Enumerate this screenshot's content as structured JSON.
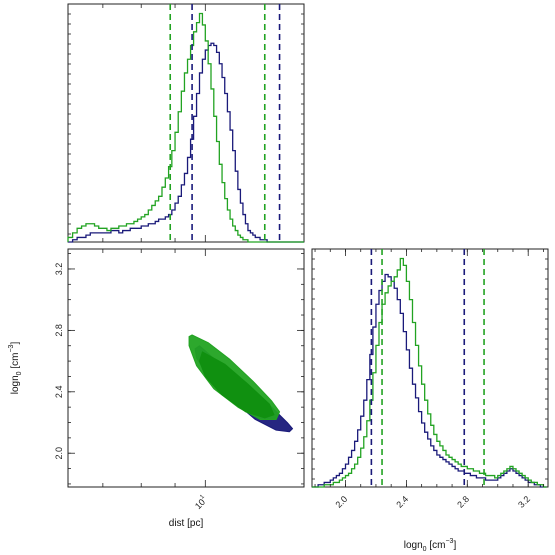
{
  "chart_data": [
    {
      "type": "histogram",
      "panel": "dist marginal",
      "x_scale": "log",
      "xlim": [
        6.2,
        14.1
      ],
      "bins_x": [
        6.2,
        6.3,
        6.4,
        6.5,
        6.6,
        6.7,
        6.8,
        6.9,
        7.0,
        7.1,
        7.2,
        7.3,
        7.4,
        7.5,
        7.6,
        7.7,
        7.8,
        7.9,
        8.0,
        8.1,
        8.2,
        8.3,
        8.4,
        8.5,
        8.6,
        8.7,
        8.8,
        8.9,
        9.0,
        9.1,
        9.2,
        9.3,
        9.4,
        9.5,
        9.6,
        9.7,
        9.8,
        9.9,
        10.0,
        10.1,
        10.2,
        10.3,
        10.4,
        10.5,
        10.6,
        10.7,
        10.8,
        10.9,
        11.0,
        11.1,
        11.2,
        11.3,
        11.4,
        11.5,
        11.6,
        11.7,
        11.8,
        11.9,
        12.0,
        12.1,
        12.2,
        12.3,
        12.4,
        12.5,
        12.6,
        12.7,
        12.8,
        12.9,
        13.0,
        13.1,
        13.2,
        13.3,
        13.4,
        13.5,
        13.6,
        13.7,
        13.8,
        13.9,
        14.0,
        14.1
      ],
      "series": [
        {
          "color": "#1a1a7a",
          "counts": [
            0.0,
            0.01,
            0.02,
            0.02,
            0.03,
            0.04,
            0.04,
            0.04,
            0.04,
            0.04,
            0.05,
            0.05,
            0.04,
            0.05,
            0.05,
            0.06,
            0.06,
            0.06,
            0.07,
            0.07,
            0.08,
            0.08,
            0.09,
            0.1,
            0.1,
            0.11,
            0.12,
            0.14,
            0.17,
            0.2,
            0.25,
            0.3,
            0.37,
            0.45,
            0.55,
            0.65,
            0.74,
            0.8,
            0.84,
            0.86,
            0.87,
            0.86,
            0.83,
            0.78,
            0.72,
            0.65,
            0.57,
            0.49,
            0.4,
            0.31,
            0.23,
            0.17,
            0.12,
            0.08,
            0.05,
            0.04,
            0.03,
            0.02,
            0.02,
            0.01,
            0.01,
            0.01,
            0.0,
            0.0,
            0.0,
            0.0,
            0.0,
            0.0,
            0.0,
            0.0,
            0.0,
            0.0,
            0.0,
            0.0,
            0.0,
            0.0,
            0.0,
            0.0,
            0.0
          ]
        },
        {
          "color": "#22a322",
          "counts": [
            0.02,
            0.04,
            0.06,
            0.07,
            0.08,
            0.08,
            0.07,
            0.06,
            0.06,
            0.05,
            0.06,
            0.06,
            0.07,
            0.07,
            0.08,
            0.08,
            0.09,
            0.1,
            0.11,
            0.12,
            0.14,
            0.16,
            0.18,
            0.2,
            0.24,
            0.28,
            0.33,
            0.4,
            0.48,
            0.57,
            0.66,
            0.74,
            0.8,
            0.86,
            0.92,
            0.96,
            1.0,
            0.95,
            0.88,
            0.78,
            0.67,
            0.55,
            0.44,
            0.34,
            0.26,
            0.19,
            0.14,
            0.1,
            0.07,
            0.05,
            0.03,
            0.02,
            0.01,
            0.01,
            0.0,
            0.0,
            0.0,
            0.0,
            0.0,
            0.0,
            0.0,
            0.0,
            0.0,
            0.0,
            0.0,
            0.0,
            0.0,
            0.0,
            0.0,
            0.0,
            0.0,
            0.0,
            0.0,
            0.0,
            0.0,
            0.0,
            0.0,
            0.0,
            0.0
          ]
        }
      ],
      "vlines": [
        {
          "x": 8.85,
          "color": "#22a322"
        },
        {
          "x": 9.55,
          "color": "#1a1a7a"
        },
        {
          "x": 12.3,
          "color": "#22a322"
        },
        {
          "x": 12.95,
          "color": "#1a1a7a"
        }
      ]
    },
    {
      "type": "contour",
      "panel": "joint dist vs logn0",
      "x_scale": "log",
      "xlim": [
        6.2,
        14.1
      ],
      "ylim": [
        1.78,
        3.33
      ],
      "xticks": [
        {
          "value": 10,
          "label": "10",
          "exp": "1"
        }
      ],
      "yticks": [
        {
          "value": 2.0,
          "label": "2.0"
        },
        {
          "value": 2.4,
          "label": "2.4"
        },
        {
          "value": 2.8,
          "label": "2.8"
        },
        {
          "value": 3.2,
          "label": "3.2"
        }
      ],
      "xlabel": "dist [pc]",
      "ylabel": "logn",
      "ylabel_sub": "0",
      "ylabel_unit": "[cm",
      "ylabel_unit_exp": "−3",
      "ylabel_unit_close": "]",
      "regions": [
        {
          "color": "#1a1a7a",
          "level": "outer",
          "path_data": [
            [
              9.8,
              2.7
            ],
            [
              10.6,
              2.57
            ],
            [
              11.6,
              2.43
            ],
            [
              12.6,
              2.3
            ],
            [
              13.3,
              2.2
            ],
            [
              13.55,
              2.16
            ],
            [
              13.4,
              2.14
            ],
            [
              12.8,
              2.15
            ],
            [
              11.9,
              2.22
            ],
            [
              10.9,
              2.36
            ],
            [
              10.1,
              2.5
            ],
            [
              9.7,
              2.62
            ],
            [
              9.65,
              2.68
            ]
          ]
        },
        {
          "color": "#22a322",
          "level": "outer",
          "path_data": [
            [
              9.55,
              2.77
            ],
            [
              10.1,
              2.72
            ],
            [
              10.9,
              2.61
            ],
            [
              11.8,
              2.47
            ],
            [
              12.6,
              2.34
            ],
            [
              12.95,
              2.27
            ],
            [
              12.8,
              2.22
            ],
            [
              12.1,
              2.22
            ],
            [
              11.2,
              2.3
            ],
            [
              10.3,
              2.42
            ],
            [
              9.7,
              2.57
            ],
            [
              9.45,
              2.7
            ],
            [
              9.45,
              2.76
            ]
          ]
        },
        {
          "color": "#109010",
          "level": "inner",
          "path_data": [
            [
              9.9,
              2.66
            ],
            [
              10.7,
              2.58
            ],
            [
              11.6,
              2.45
            ],
            [
              12.5,
              2.32
            ],
            [
              12.7,
              2.25
            ],
            [
              12.3,
              2.23
            ],
            [
              11.5,
              2.27
            ],
            [
              10.6,
              2.38
            ],
            [
              10.0,
              2.5
            ],
            [
              9.8,
              2.6
            ]
          ]
        }
      ]
    },
    {
      "type": "histogram",
      "panel": "logn0 marginal",
      "xlim": [
        1.78,
        3.33
      ],
      "xticks": [
        {
          "value": 2.0,
          "label": "2.0"
        },
        {
          "value": 2.4,
          "label": "2.4"
        },
        {
          "value": 2.8,
          "label": "2.8"
        },
        {
          "value": 3.2,
          "label": "3.2"
        }
      ],
      "xlabel": "logn",
      "xlabel_sub": "0",
      "xlabel_unit": "[cm",
      "xlabel_unit_exp": "−3",
      "xlabel_unit_close": "]",
      "bins_x": [
        1.78,
        1.8,
        1.82,
        1.84,
        1.86,
        1.88,
        1.9,
        1.92,
        1.94,
        1.96,
        1.98,
        2.0,
        2.02,
        2.04,
        2.06,
        2.08,
        2.1,
        2.12,
        2.14,
        2.16,
        2.18,
        2.2,
        2.22,
        2.24,
        2.26,
        2.28,
        2.3,
        2.32,
        2.34,
        2.36,
        2.38,
        2.4,
        2.42,
        2.44,
        2.46,
        2.48,
        2.5,
        2.52,
        2.54,
        2.56,
        2.58,
        2.6,
        2.62,
        2.64,
        2.66,
        2.68,
        2.7,
        2.72,
        2.74,
        2.76,
        2.78,
        2.8,
        2.82,
        2.84,
        2.86,
        2.88,
        2.9,
        2.92,
        2.94,
        2.96,
        2.98,
        3.0,
        3.02,
        3.04,
        3.06,
        3.08,
        3.1,
        3.12,
        3.14,
        3.16,
        3.18,
        3.2,
        3.22,
        3.24,
        3.26,
        3.28,
        3.3,
        3.32
      ],
      "series": [
        {
          "color": "#1a1a7a",
          "counts": [
            0.0,
            0.0,
            0.01,
            0.01,
            0.02,
            0.02,
            0.03,
            0.04,
            0.05,
            0.06,
            0.08,
            0.1,
            0.13,
            0.16,
            0.2,
            0.25,
            0.31,
            0.38,
            0.47,
            0.58,
            0.7,
            0.8,
            0.86,
            0.9,
            0.93,
            0.92,
            0.9,
            0.87,
            0.82,
            0.76,
            0.68,
            0.6,
            0.52,
            0.45,
            0.39,
            0.33,
            0.28,
            0.24,
            0.21,
            0.18,
            0.16,
            0.14,
            0.13,
            0.12,
            0.11,
            0.1,
            0.09,
            0.08,
            0.07,
            0.07,
            0.06,
            0.06,
            0.05,
            0.05,
            0.04,
            0.04,
            0.04,
            0.03,
            0.03,
            0.03,
            0.03,
            0.04,
            0.05,
            0.06,
            0.07,
            0.08,
            0.07,
            0.06,
            0.05,
            0.04,
            0.03,
            0.02,
            0.02,
            0.01,
            0.01,
            0.0,
            0.0
          ]
        },
        {
          "color": "#22a322",
          "counts": [
            0.0,
            0.0,
            0.0,
            0.0,
            0.01,
            0.01,
            0.01,
            0.02,
            0.02,
            0.03,
            0.04,
            0.05,
            0.06,
            0.08,
            0.1,
            0.13,
            0.17,
            0.22,
            0.29,
            0.38,
            0.5,
            0.62,
            0.72,
            0.8,
            0.85,
            0.88,
            0.9,
            0.92,
            0.95,
            1.0,
            0.97,
            0.9,
            0.82,
            0.72,
            0.62,
            0.53,
            0.45,
            0.38,
            0.32,
            0.27,
            0.23,
            0.2,
            0.18,
            0.16,
            0.14,
            0.13,
            0.12,
            0.11,
            0.1,
            0.09,
            0.09,
            0.08,
            0.08,
            0.07,
            0.07,
            0.06,
            0.06,
            0.05,
            0.05,
            0.05,
            0.04,
            0.05,
            0.06,
            0.07,
            0.08,
            0.09,
            0.08,
            0.07,
            0.06,
            0.05,
            0.04,
            0.03,
            0.02,
            0.02,
            0.01,
            0.01,
            0.0
          ]
        }
      ],
      "vlines": [
        {
          "x": 2.17,
          "color": "#1a1a7a"
        },
        {
          "x": 2.24,
          "color": "#22a322"
        },
        {
          "x": 2.78,
          "color": "#1a1a7a"
        },
        {
          "x": 2.91,
          "color": "#22a322"
        }
      ]
    }
  ]
}
